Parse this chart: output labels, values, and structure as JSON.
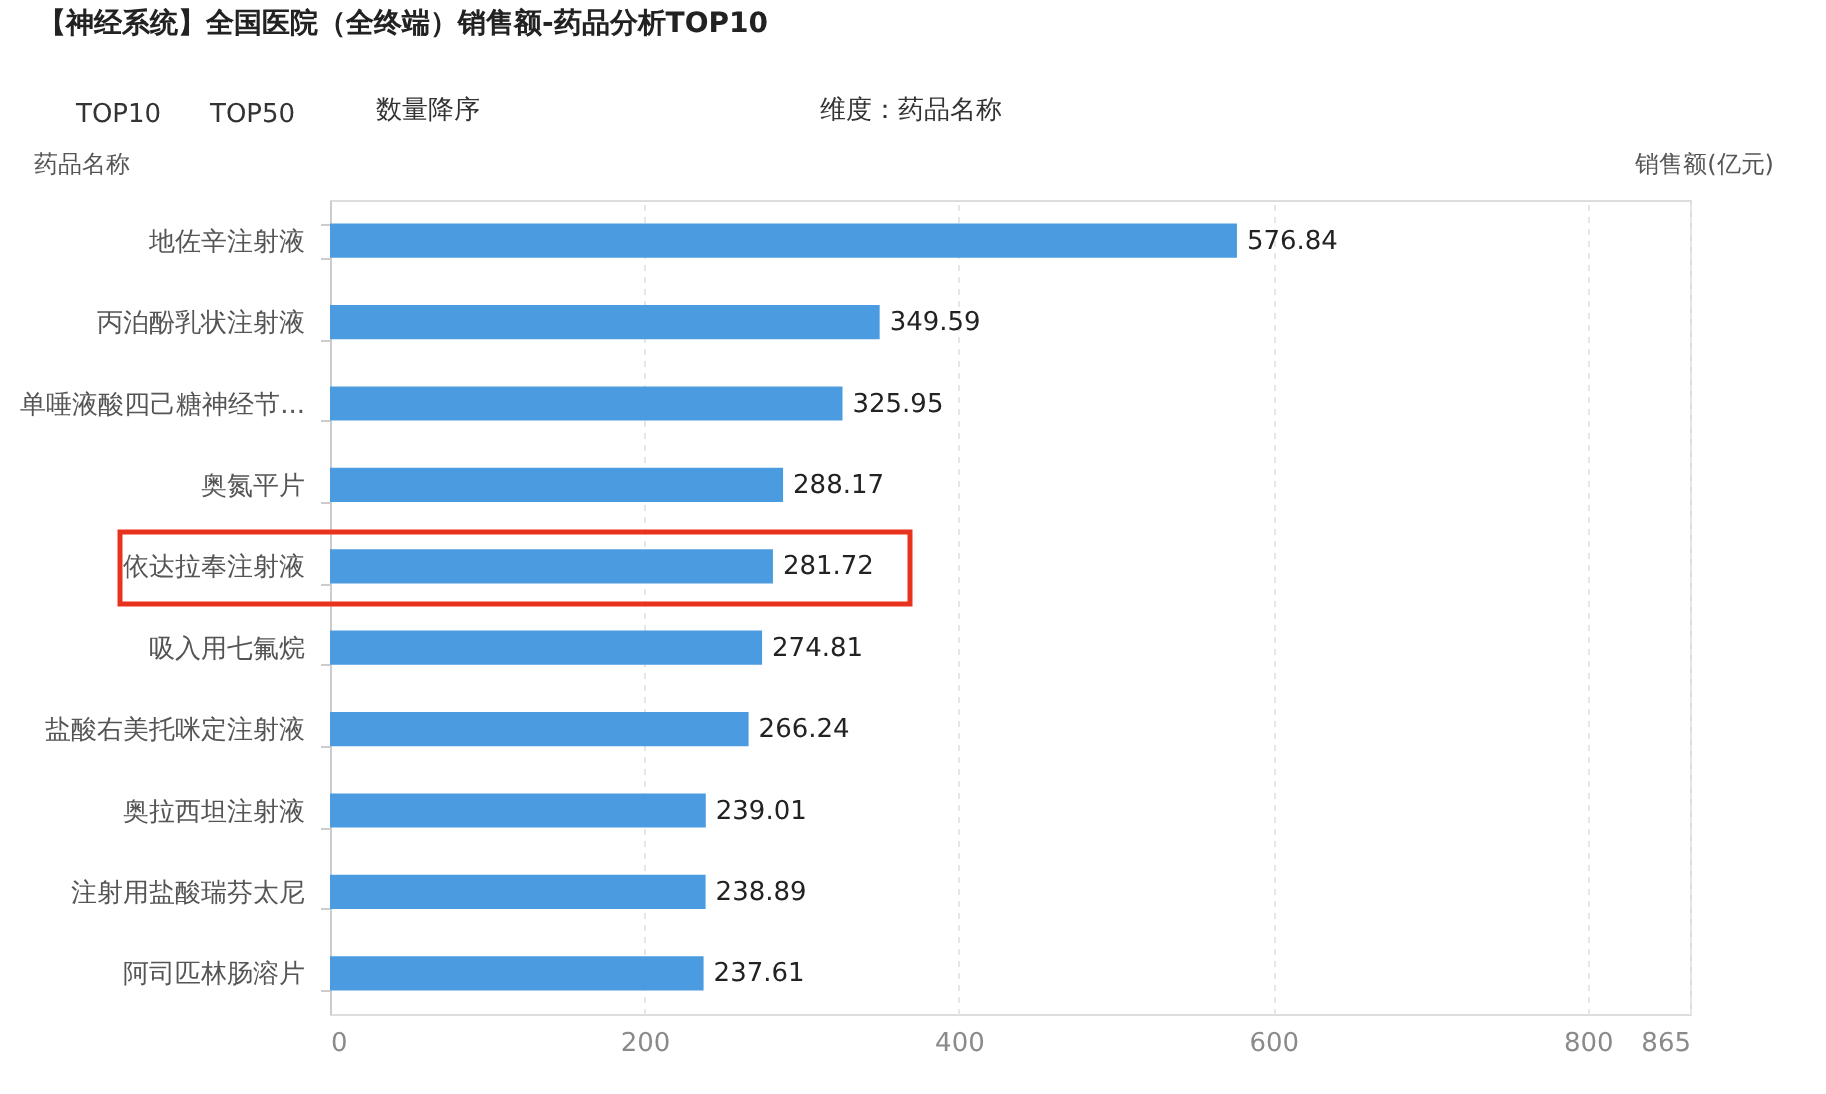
{
  "chart_data": {
    "type": "bar",
    "orientation": "horizontal",
    "title": "【神经系统】全国医院（全终端）销售额-药品分析TOP10",
    "ylabel": "药品名称",
    "xlabel": "销售额(亿元)",
    "annotations": [
      "TOP10",
      "TOP50",
      "数量降序",
      "维度：药品名称"
    ],
    "categories": [
      "地佐辛注射液",
      "丙泊酚乳状注射液",
      "单唾液酸四己糖神经节...",
      "奥氮平片",
      "依达拉奉注射液",
      "吸入用七氟烷",
      "盐酸右美托咪定注射液",
      "奥拉西坦注射液",
      "注射用盐酸瑞芬太尼",
      "阿司匹林肠溶片"
    ],
    "values": [
      576.84,
      349.59,
      325.95,
      288.17,
      281.72,
      274.81,
      266.24,
      239.01,
      238.89,
      237.61
    ],
    "color": "#4a9be0",
    "xlim": [
      0,
      865
    ],
    "xticks": [
      0,
      200,
      400,
      600,
      800,
      865
    ],
    "grid": "x",
    "data_labels": true
  }
}
